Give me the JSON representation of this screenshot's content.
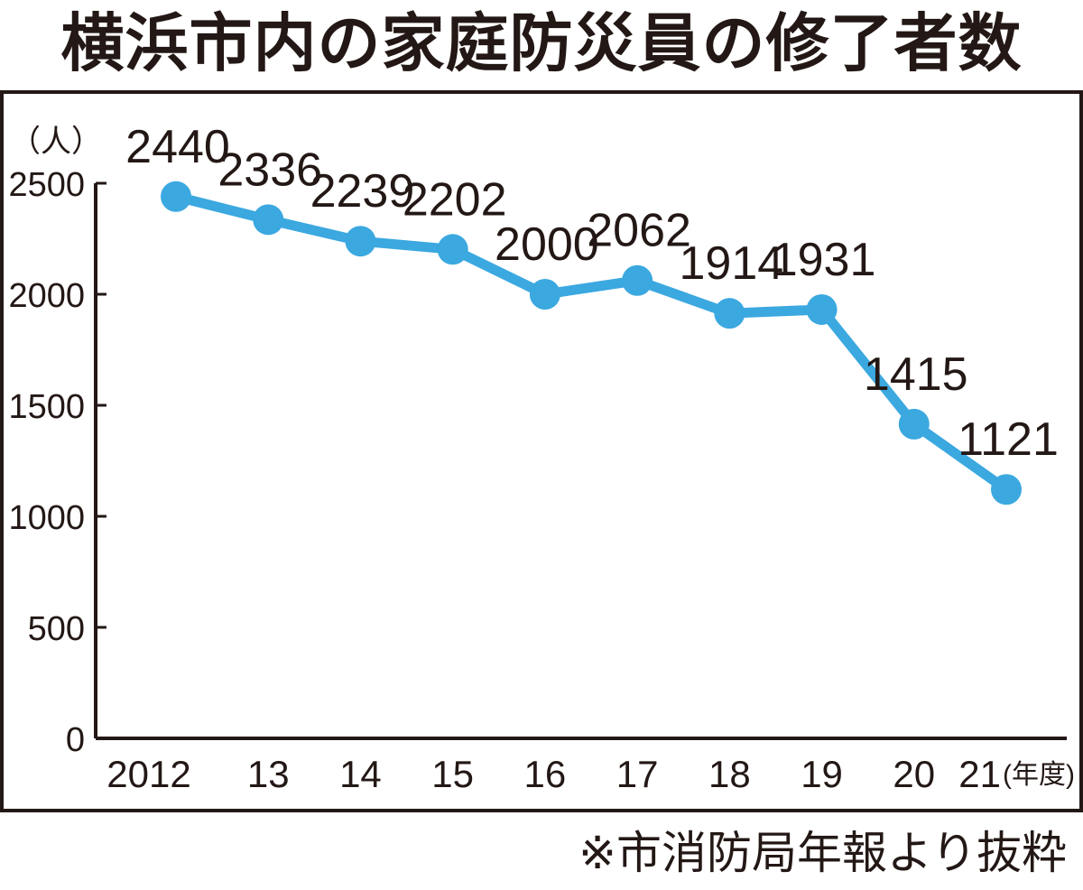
{
  "title": "横浜市内の家庭防災員の修了者数",
  "source_note": "※市消防局年報より抜粋",
  "colors": {
    "line": "#3ba8e0",
    "frame": "#231815",
    "text": "#231815"
  },
  "chart_data": {
    "type": "line",
    "title": "横浜市内の家庭防災員の修了者数",
    "ylabel": "（人）",
    "xlabel": "(年度)",
    "ylim": [
      0,
      2500
    ],
    "yticks": [
      0,
      500,
      1000,
      1500,
      2000,
      2500
    ],
    "grid": false,
    "legend": "none",
    "categories": [
      "2012",
      "13",
      "14",
      "15",
      "16",
      "17",
      "18",
      "19",
      "20",
      "21"
    ],
    "series": [
      {
        "values": [
          2440,
          2336,
          2239,
          2202,
          2000,
          2062,
          1914,
          1931,
          1415,
          1121
        ],
        "data_labels": [
          "2440",
          "2336",
          "2239",
          "2202",
          "2000",
          "2062",
          "1914",
          "1931",
          "1415",
          "1121"
        ]
      }
    ]
  }
}
